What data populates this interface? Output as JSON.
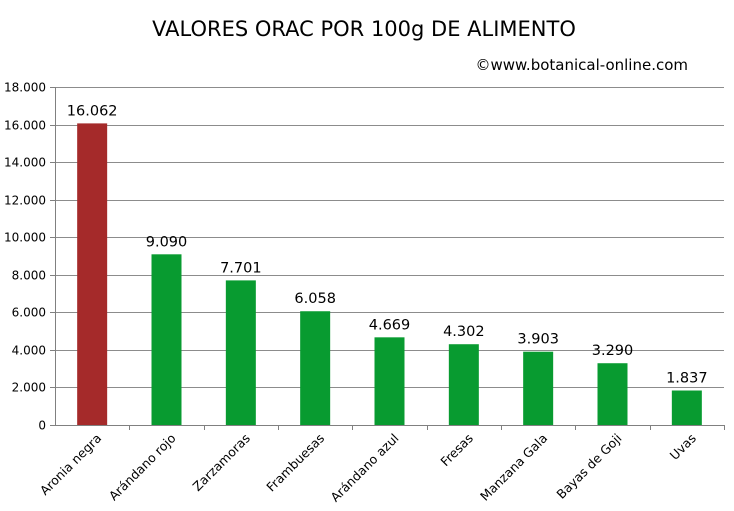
{
  "chart_data": {
    "type": "bar",
    "title": "VALORES ORAC POR 100g DE ALIMENTO",
    "credit": "©www.botanical-online.com",
    "xlabel": "",
    "ylabel": "",
    "ylim": [
      0,
      18000
    ],
    "grid": true,
    "legend": "none",
    "categories": [
      "Aronia negra",
      "Arándano rojo",
      "Zarzamoras",
      "Frambuesas",
      "Arándano azul",
      "Fresas",
      "Manzana Gala",
      "Bayas de Goji",
      "Uvas"
    ],
    "values": [
      16062,
      9090,
      7701,
      6058,
      4669,
      4302,
      3903,
      3290,
      1837
    ],
    "value_labels": [
      "16.062",
      "9.090",
      "7.701",
      "6.058",
      "4.669",
      "4.302",
      "3.903",
      "3.290",
      "1.837"
    ],
    "y_ticks": [
      0,
      2000,
      4000,
      6000,
      8000,
      10000,
      12000,
      14000,
      16000,
      18000
    ],
    "y_tick_labels": [
      "0",
      "2.000",
      "4.000",
      "6.000",
      "8.000",
      "10.000",
      "12.000",
      "14.000",
      "16.000",
      "18.000"
    ],
    "colors": {
      "highlight": "#a52a2a",
      "bar": "#089b30",
      "grid": "#8c8c8c",
      "axis": "#808080"
    },
    "highlight_index": 0
  }
}
